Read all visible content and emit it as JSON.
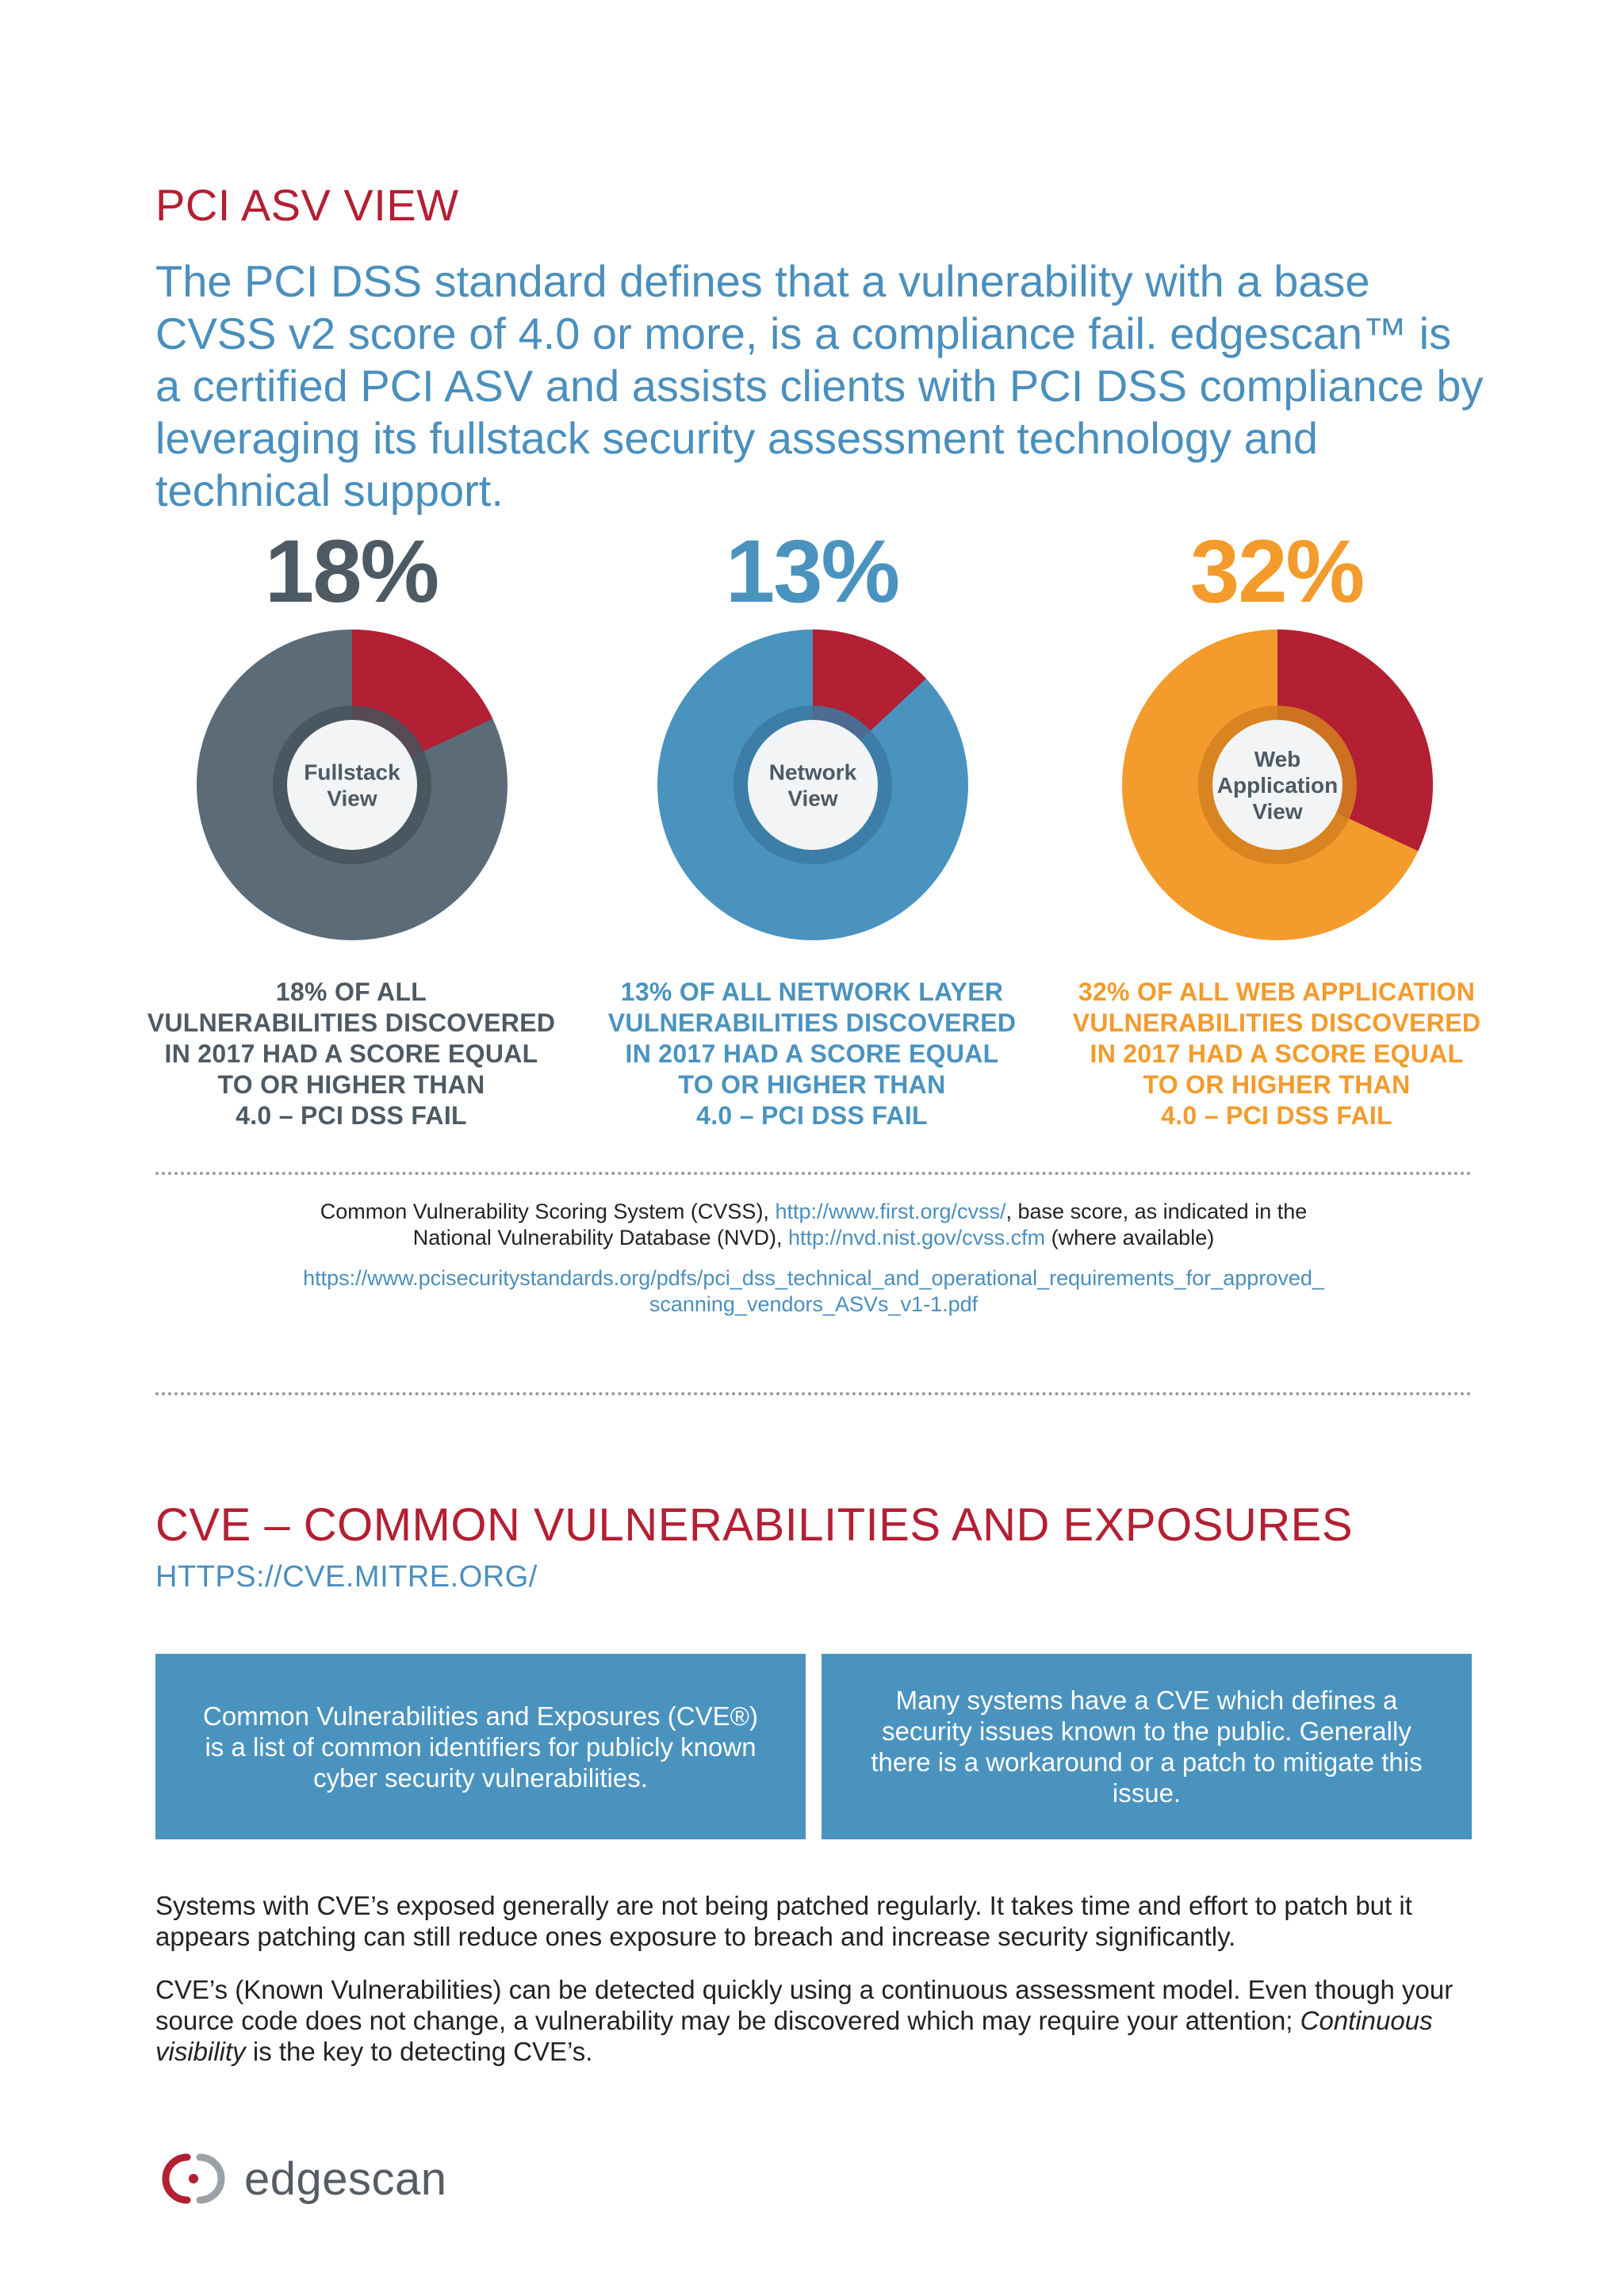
{
  "pci": {
    "title": "PCI ASV VIEW",
    "lead": "The PCI DSS standard defines that a vulnerability with a base CVSS v2 score of 4.0 or more, is a compliance fail. edgescan™ is a certified PCI ASV and assists clients with PCI DSS compliance by leveraging its fullstack security assessment technology and technical support."
  },
  "stats": [
    {
      "percent": "18%",
      "fraction": 0.18,
      "center_label_1": "Fullstack",
      "center_label_2": "View",
      "center_label_3": "",
      "caption": [
        "18% OF ALL",
        "VULNERABILITIES DISCOVERED",
        "IN 2017 HAD A SCORE EQUAL",
        "TO OR HIGHER THAN",
        "4.0 – PCI DSS FAIL"
      ],
      "color": "#5b6b78",
      "ring_color": "#46535d",
      "caption_color": "#4d5a64"
    },
    {
      "percent": "13%",
      "fraction": 0.13,
      "center_label_1": "Network",
      "center_label_2": "View",
      "center_label_3": "",
      "caption": [
        "13% OF ALL NETWORK LAYER",
        "VULNERABILITIES DISCOVERED",
        "IN 2017 HAD A SCORE EQUAL",
        "TO OR HIGHER THAN",
        "4.0 – PCI DSS FAIL"
      ],
      "color": "#4a93bf",
      "ring_color": "#3a7aa2",
      "caption_color": "#4a93bf"
    },
    {
      "percent": "32%",
      "fraction": 0.32,
      "center_label_1": "Web",
      "center_label_2": "Application",
      "center_label_3": "View",
      "caption": [
        "32% OF ALL WEB APPLICATION",
        "VULNERABILITIES DISCOVERED",
        "IN 2017 HAD A SCORE EQUAL",
        "TO OR HIGHER THAN",
        "4.0 – PCI DSS FAIL"
      ],
      "color": "#f39b2c",
      "ring_color": "#d2801e",
      "caption_color": "#f39b2c"
    }
  ],
  "colors": {
    "fail_slice": "#b31f33",
    "center_disc": "#f2f4f6"
  },
  "refs": {
    "line1_a": "Common Vulnerability Scoring System (CVSS), ",
    "line1_link": "http://www.first.org/cvss/",
    "line1_b": ", base score, as indicated in the",
    "line2_a": "National Vulnerability Database (NVD), ",
    "line2_link": "http://nvd.nist.gov/cvss.cfm",
    "line2_b": " (where available)",
    "link3_a": "https://www.pcisecuritystandards.org/pdfs/pci_dss_technical_and_operational_requirements_for_approved_",
    "link3_b": "scanning_vendors_ASVs_v1-1.pdf"
  },
  "cve": {
    "title": "CVE – COMMON VULNERABILITIES AND EXPOSURES",
    "url": "HTTPS://CVE.MITRE.ORG/",
    "box1": "Common Vulnerabilities and Exposures (CVE®) is a list of common identifiers for publicly known cyber security vulnerabilities.",
    "box2": "Many systems have a CVE which defines a security issues known to the public. Generally there is a workaround or a patch to mitigate this issue.",
    "para1": "Systems with CVE’s exposed generally are not being patched regularly. It takes time and effort to patch but it appears patching can still reduce ones exposure to breach and increase security significantly.",
    "para2_a": "CVE’s (Known Vulnerabilities) can be detected quickly using a continuous assessment model. Even though your source code does not change, a vulnerability may be discovered which may require your attention; ",
    "para2_em": "Continuous visibility",
    "para2_b": " is the key to detecting CVE’s."
  },
  "footer": {
    "logo_text": "edgescan",
    "logo_icon": "edgescan-logo-icon"
  }
}
